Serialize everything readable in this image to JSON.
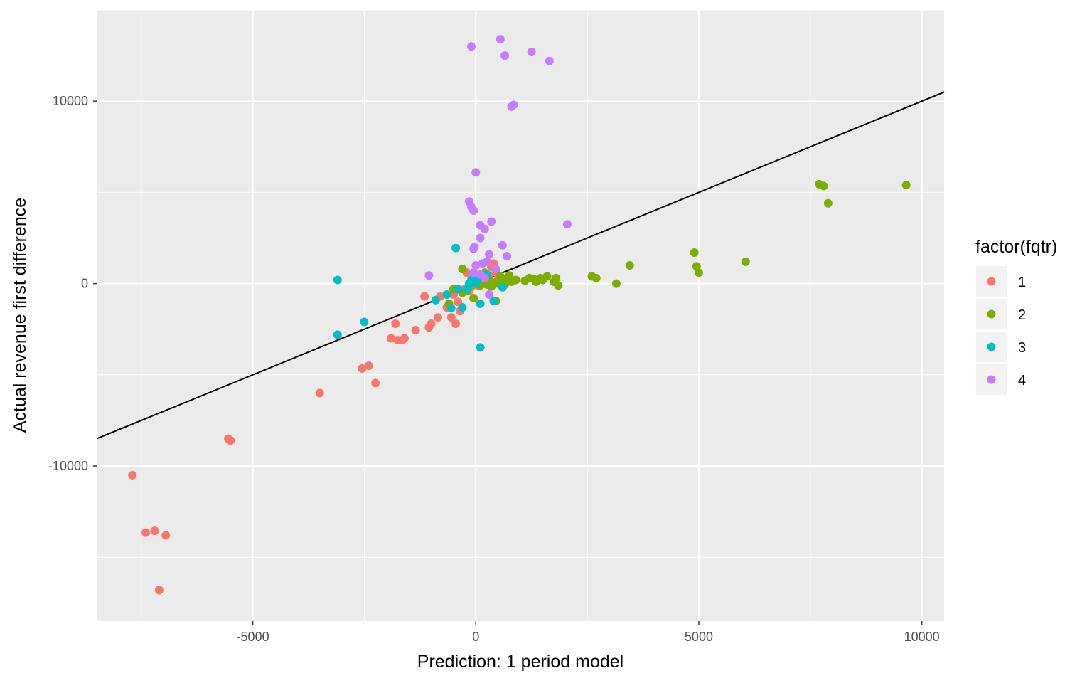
{
  "chart_data": {
    "type": "scatter",
    "title": "",
    "xlabel": "Prediction: 1 period model",
    "ylabel": "Actual revenue first difference",
    "xlim": [
      -8500,
      10500
    ],
    "ylim": [
      -18500,
      15000
    ],
    "x_ticks": [
      -5000,
      0,
      5000,
      10000
    ],
    "x_tick_labels": [
      "-5000",
      "0",
      "5000",
      "10000"
    ],
    "y_ticks": [
      -10000,
      0,
      10000
    ],
    "y_tick_labels": [
      "-10000",
      "0",
      "10000"
    ],
    "grid": true,
    "background": "#ebebeb",
    "reference_line": {
      "slope": 1,
      "intercept": 0,
      "color": "#000000"
    },
    "legend": {
      "title": "factor(fqtr)",
      "position": "right",
      "entries": [
        {
          "label": "1",
          "color": "#F8766D"
        },
        {
          "label": "2",
          "color": "#7CAE00"
        },
        {
          "label": "3",
          "color": "#00BFC4"
        },
        {
          "label": "4",
          "color": "#C77CFF"
        }
      ]
    },
    "series": [
      {
        "name": "1",
        "color": "#F8766D",
        "points": [
          [
            -7700,
            -10500
          ],
          [
            -7400,
            -13650
          ],
          [
            -7200,
            -13550
          ],
          [
            -7100,
            -16800
          ],
          [
            -6950,
            -13800
          ],
          [
            -5550,
            -8500
          ],
          [
            -5500,
            -8600
          ],
          [
            -3500,
            -6000
          ],
          [
            -2550,
            -4650
          ],
          [
            -2400,
            -4500
          ],
          [
            -2250,
            -5450
          ],
          [
            -1900,
            -3000
          ],
          [
            -1800,
            -2200
          ],
          [
            -1750,
            -3100
          ],
          [
            -1650,
            -3100
          ],
          [
            -1600,
            -3000
          ],
          [
            -1350,
            -2550
          ],
          [
            -1150,
            -700
          ],
          [
            -1050,
            -2400
          ],
          [
            -1000,
            -2200
          ],
          [
            -850,
            -1850
          ],
          [
            -800,
            -700
          ],
          [
            -650,
            -1300
          ],
          [
            -550,
            -1850
          ],
          [
            -500,
            -600
          ],
          [
            -450,
            -2200
          ],
          [
            -400,
            -1000
          ],
          [
            -350,
            -1500
          ],
          [
            -250,
            -300
          ],
          [
            -200,
            600
          ],
          [
            -150,
            -400
          ],
          [
            -100,
            -200
          ],
          [
            50,
            -100
          ],
          [
            150,
            300
          ],
          [
            250,
            -50
          ],
          [
            350,
            900
          ],
          [
            400,
            1100
          ],
          [
            450,
            600
          ],
          [
            500,
            200
          ],
          [
            300,
            400
          ]
        ]
      },
      {
        "name": "2",
        "color": "#7CAE00",
        "points": [
          [
            -300,
            800
          ],
          [
            -600,
            -1100
          ],
          [
            -500,
            -300
          ],
          [
            -300,
            -500
          ],
          [
            -200,
            -400
          ],
          [
            -150,
            -200
          ],
          [
            -50,
            -800
          ],
          [
            0,
            100
          ],
          [
            100,
            -100
          ],
          [
            200,
            600
          ],
          [
            250,
            -50
          ],
          [
            300,
            200
          ],
          [
            350,
            -150
          ],
          [
            400,
            50
          ],
          [
            450,
            -950
          ],
          [
            500,
            0
          ],
          [
            550,
            400
          ],
          [
            600,
            150
          ],
          [
            650,
            -50
          ],
          [
            700,
            300
          ],
          [
            750,
            450
          ],
          [
            800,
            100
          ],
          [
            900,
            200
          ],
          [
            1100,
            150
          ],
          [
            1200,
            300
          ],
          [
            1300,
            250
          ],
          [
            1350,
            100
          ],
          [
            1450,
            300
          ],
          [
            1500,
            200
          ],
          [
            1600,
            400
          ],
          [
            1750,
            100
          ],
          [
            1800,
            300
          ],
          [
            1850,
            -100
          ],
          [
            2600,
            400
          ],
          [
            2700,
            300
          ],
          [
            3150,
            0
          ],
          [
            3450,
            1000
          ],
          [
            4900,
            1700
          ],
          [
            4950,
            950
          ],
          [
            5000,
            600
          ],
          [
            6050,
            1200
          ],
          [
            7700,
            5450
          ],
          [
            7800,
            5350
          ],
          [
            7900,
            4400
          ],
          [
            9650,
            5400
          ]
        ]
      },
      {
        "name": "3",
        "color": "#00BFC4",
        "points": [
          [
            -3100,
            -2800
          ],
          [
            -3100,
            200
          ],
          [
            -2500,
            -2100
          ],
          [
            -900,
            -900
          ],
          [
            -650,
            -600
          ],
          [
            -550,
            -1350
          ],
          [
            -450,
            1950
          ],
          [
            -400,
            -300
          ],
          [
            -300,
            -1300
          ],
          [
            -200,
            -300
          ],
          [
            -150,
            0
          ],
          [
            -100,
            200
          ],
          [
            -50,
            300
          ],
          [
            0,
            0
          ],
          [
            50,
            200
          ],
          [
            100,
            -1100
          ],
          [
            100,
            -3500
          ],
          [
            250,
            500
          ],
          [
            400,
            -950
          ],
          [
            600,
            -200
          ]
        ]
      },
      {
        "name": "4",
        "color": "#C77CFF",
        "points": [
          [
            -100,
            13000
          ],
          [
            550,
            13400
          ],
          [
            650,
            12500
          ],
          [
            1250,
            12700
          ],
          [
            1650,
            12200
          ],
          [
            800,
            9700
          ],
          [
            850,
            9800
          ],
          [
            0,
            6100
          ],
          [
            -150,
            4500
          ],
          [
            -100,
            4200
          ],
          [
            -50,
            4000
          ],
          [
            100,
            3200
          ],
          [
            200,
            3000
          ],
          [
            350,
            3400
          ],
          [
            600,
            2100
          ],
          [
            100,
            2500
          ],
          [
            -50,
            1900
          ],
          [
            -30,
            2000
          ],
          [
            300,
            1600
          ],
          [
            700,
            1500
          ],
          [
            2050,
            3250
          ],
          [
            -1050,
            450
          ],
          [
            0,
            1000
          ],
          [
            150,
            1100
          ],
          [
            250,
            1200
          ],
          [
            450,
            800
          ],
          [
            100,
            500
          ],
          [
            200,
            300
          ],
          [
            300,
            -600
          ],
          [
            -50,
            600
          ]
        ]
      }
    ]
  }
}
